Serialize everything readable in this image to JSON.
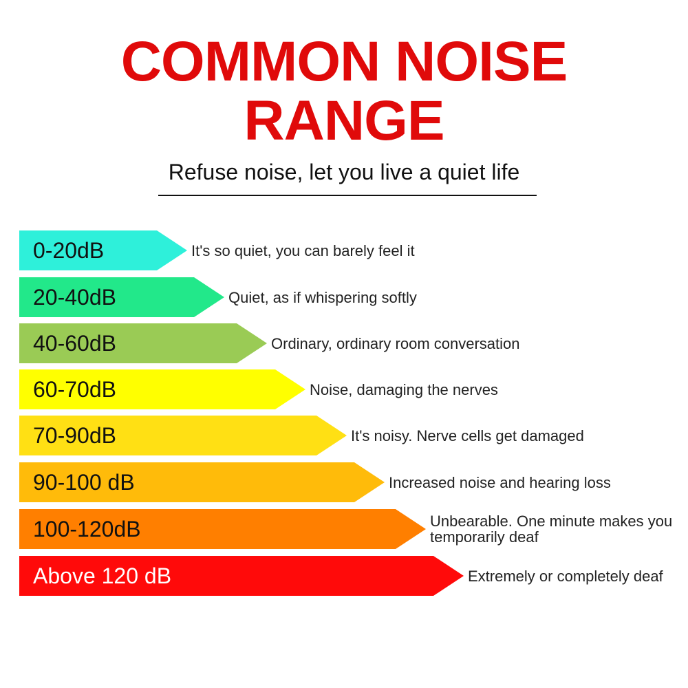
{
  "title": {
    "line1": "COMMON NOISE",
    "line2": "RANGE",
    "color": "#e00a0a"
  },
  "subtitle": "Refuse noise, let you live a quiet life",
  "levels": [
    {
      "range": "0-20dB",
      "description": "It's so quiet, you can barely feel it",
      "color": "#2ef0da"
    },
    {
      "range": "20-40dB",
      "description": "Quiet, as if whispering softly",
      "color": "#22e88a"
    },
    {
      "range": "40-60dB",
      "description": "Ordinary, ordinary room conversation",
      "color": "#9acb55"
    },
    {
      "range": "60-70dB",
      "description": "Noise, damaging the nerves",
      "color": "#ffff00"
    },
    {
      "range": "70-90dB",
      "description": "It's noisy. Nerve cells get damaged",
      "color": "#ffe014"
    },
    {
      "range": "90-100 dB",
      "description": "Increased noise and hearing loss",
      "color": "#ffbb0a"
    },
    {
      "range": "100-120dB",
      "description": "Unbearable. One minute makes you temporarily deaf",
      "color": "#ff7f00"
    },
    {
      "range": "Above 120 dB",
      "description": "Extremely or completely deaf",
      "color": "#ff0a0a"
    }
  ]
}
